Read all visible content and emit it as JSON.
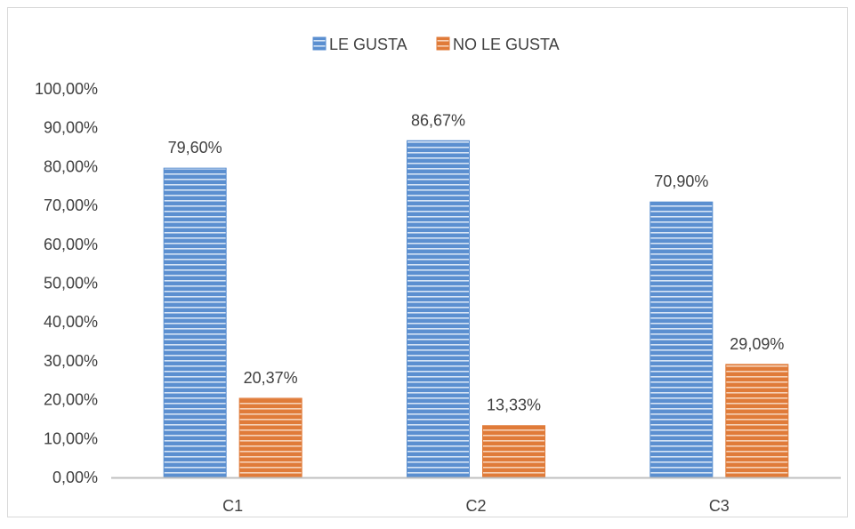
{
  "chart_data": {
    "type": "bar",
    "categories": [
      "C1",
      "C2",
      "C3"
    ],
    "series": [
      {
        "name": "LE GUSTA",
        "values": [
          79.6,
          86.67,
          70.9
        ],
        "labels": [
          "79,60%",
          "86,67%",
          "70,90%"
        ],
        "color": "#5b8fd0"
      },
      {
        "name": "NO LE GUSTA",
        "values": [
          20.37,
          13.33,
          29.09
        ],
        "labels": [
          "20,37%",
          "13,33%",
          "29,09%"
        ],
        "color": "#e07b39"
      }
    ],
    "y_ticks": [
      "0,00%",
      "10,00%",
      "20,00%",
      "30,00%",
      "40,00%",
      "50,00%",
      "60,00%",
      "70,00%",
      "80,00%",
      "90,00%",
      "100,00%"
    ],
    "ylim": [
      0,
      100
    ],
    "grid": false,
    "legend_position": "top-center"
  }
}
